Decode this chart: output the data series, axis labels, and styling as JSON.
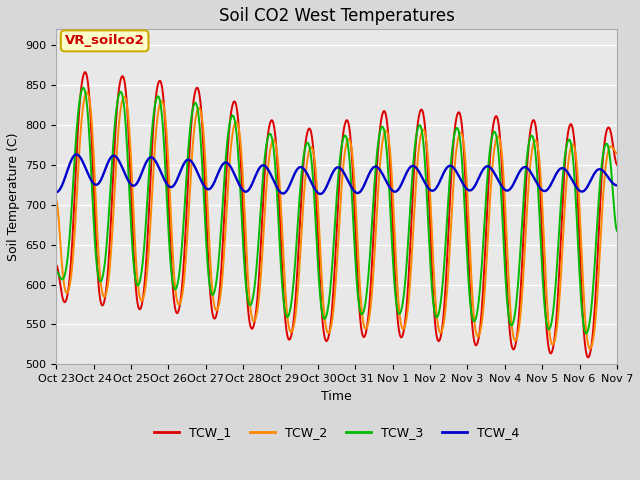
{
  "title": "Soil CO2 West Temperatures",
  "xlabel": "Time",
  "ylabel": "Soil Temperature (C)",
  "ylim": [
    500,
    920
  ],
  "yticks": [
    500,
    550,
    600,
    650,
    700,
    750,
    800,
    850,
    900
  ],
  "fig_bg_color": "#d8d8d8",
  "plot_bg_color": "#e8e8e8",
  "annotation_text": "VR_soilco2",
  "annotation_bg": "#ffffcc",
  "annotation_border": "#ccaa00",
  "series_colors": {
    "TCW_1": "#dd0000",
    "TCW_2": "#ff8800",
    "TCW_3": "#00bb00",
    "TCW_4": "#0000cc"
  },
  "xtick_labels": [
    "Oct 23",
    "Oct 24",
    "Oct 25",
    "Oct 26",
    "Oct 27",
    "Oct 28",
    "Oct 29",
    "Oct 30",
    "Oct 31",
    "Nov 1",
    "Nov 2",
    "Nov 3",
    "Nov 4",
    "Nov 5",
    "Nov 6",
    "Nov 7"
  ],
  "num_days": 16,
  "title_fontsize": 12,
  "label_fontsize": 9,
  "tick_fontsize": 8,
  "legend_fontsize": 9
}
